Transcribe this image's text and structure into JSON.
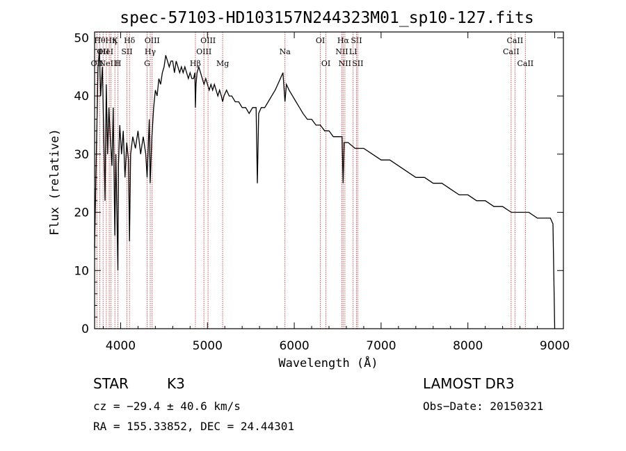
{
  "chart_data": {
    "type": "line",
    "title": "spec-57103-HD103157N244323M01_sp10-127.fits",
    "xlabel": "Wavelength (Å)",
    "ylabel": "Flux (relative)",
    "xlim": [
      3700,
      9100
    ],
    "ylim": [
      0,
      51
    ],
    "x_ticks": [
      4000,
      5000,
      6000,
      7000,
      8000,
      9000
    ],
    "x_tick_labels": [
      "4000",
      "5000",
      "6000",
      "7000",
      "8000",
      "9000"
    ],
    "y_ticks": [
      0,
      10,
      20,
      30,
      40,
      50
    ],
    "y_tick_labels": [
      "0",
      "10",
      "20",
      "30",
      "40",
      "50"
    ],
    "series": [
      {
        "name": "",
        "color": "#000000",
        "points": [
          [
            3700,
            14
          ],
          [
            3720,
            30
          ],
          [
            3740,
            45
          ],
          [
            3755,
            48
          ],
          [
            3770,
            40
          ],
          [
            3790,
            45
          ],
          [
            3810,
            30
          ],
          [
            3820,
            22
          ],
          [
            3835,
            42
          ],
          [
            3850,
            30
          ],
          [
            3865,
            38
          ],
          [
            3880,
            33
          ],
          [
            3900,
            28
          ],
          [
            3915,
            38
          ],
          [
            3933,
            16
          ],
          [
            3945,
            30
          ],
          [
            3968,
            10
          ],
          [
            3975,
            28
          ],
          [
            3990,
            35
          ],
          [
            4010,
            30
          ],
          [
            4030,
            34
          ],
          [
            4050,
            26
          ],
          [
            4070,
            32
          ],
          [
            4090,
            29
          ],
          [
            4102,
            15
          ],
          [
            4115,
            30
          ],
          [
            4140,
            33
          ],
          [
            4170,
            31
          ],
          [
            4200,
            34
          ],
          [
            4230,
            30
          ],
          [
            4260,
            33
          ],
          [
            4290,
            30
          ],
          [
            4305,
            26
          ],
          [
            4330,
            36
          ],
          [
            4340,
            25
          ],
          [
            4360,
            33
          ],
          [
            4380,
            38
          ],
          [
            4400,
            41
          ],
          [
            4420,
            40
          ],
          [
            4440,
            43
          ],
          [
            4460,
            42
          ],
          [
            4480,
            44
          ],
          [
            4500,
            45
          ],
          [
            4520,
            47
          ],
          [
            4540,
            46
          ],
          [
            4560,
            45
          ],
          [
            4580,
            46
          ],
          [
            4600,
            46
          ],
          [
            4620,
            44
          ],
          [
            4640,
            46
          ],
          [
            4660,
            45
          ],
          [
            4680,
            44
          ],
          [
            4700,
            45
          ],
          [
            4720,
            44
          ],
          [
            4740,
            45
          ],
          [
            4760,
            44
          ],
          [
            4780,
            43
          ],
          [
            4800,
            44
          ],
          [
            4820,
            43
          ],
          [
            4840,
            43
          ],
          [
            4855,
            44
          ],
          [
            4861,
            38
          ],
          [
            4868,
            42
          ],
          [
            4880,
            44
          ],
          [
            4900,
            45
          ],
          [
            4920,
            44
          ],
          [
            4940,
            43
          ],
          [
            4960,
            42
          ],
          [
            4980,
            43
          ],
          [
            5000,
            42
          ],
          [
            5020,
            41
          ],
          [
            5040,
            42
          ],
          [
            5060,
            41
          ],
          [
            5080,
            42
          ],
          [
            5100,
            41
          ],
          [
            5120,
            40
          ],
          [
            5140,
            41
          ],
          [
            5160,
            40
          ],
          [
            5175,
            39
          ],
          [
            5190,
            40
          ],
          [
            5220,
            41
          ],
          [
            5250,
            40
          ],
          [
            5280,
            40
          ],
          [
            5320,
            39
          ],
          [
            5360,
            39
          ],
          [
            5400,
            38
          ],
          [
            5440,
            38
          ],
          [
            5480,
            37
          ],
          [
            5520,
            38
          ],
          [
            5560,
            38
          ],
          [
            5575,
            25
          ],
          [
            5590,
            37
          ],
          [
            5620,
            38
          ],
          [
            5660,
            38
          ],
          [
            5700,
            39
          ],
          [
            5740,
            40
          ],
          [
            5780,
            41
          ],
          [
            5810,
            42
          ],
          [
            5840,
            43
          ],
          [
            5870,
            44
          ],
          [
            5893,
            39
          ],
          [
            5910,
            42
          ],
          [
            5940,
            41
          ],
          [
            5980,
            40
          ],
          [
            6020,
            39
          ],
          [
            6060,
            38
          ],
          [
            6100,
            37
          ],
          [
            6150,
            36
          ],
          [
            6200,
            36
          ],
          [
            6250,
            35
          ],
          [
            6300,
            35
          ],
          [
            6350,
            34
          ],
          [
            6400,
            34
          ],
          [
            6450,
            33
          ],
          [
            6500,
            33
          ],
          [
            6550,
            33
          ],
          [
            6563,
            25
          ],
          [
            6575,
            32
          ],
          [
            6620,
            32
          ],
          [
            6700,
            31
          ],
          [
            6800,
            31
          ],
          [
            6900,
            30
          ],
          [
            7000,
            29
          ],
          [
            7100,
            29
          ],
          [
            7200,
            28
          ],
          [
            7300,
            27
          ],
          [
            7400,
            26
          ],
          [
            7500,
            26
          ],
          [
            7600,
            25
          ],
          [
            7700,
            25
          ],
          [
            7800,
            24
          ],
          [
            7900,
            23
          ],
          [
            8000,
            23
          ],
          [
            8100,
            22
          ],
          [
            8200,
            22
          ],
          [
            8300,
            21
          ],
          [
            8400,
            21
          ],
          [
            8500,
            20
          ],
          [
            8600,
            20
          ],
          [
            8700,
            20
          ],
          [
            8800,
            19
          ],
          [
            8900,
            19
          ],
          [
            8950,
            19
          ],
          [
            8980,
            18
          ],
          [
            9000,
            0
          ]
        ]
      }
    ],
    "line_markers": [
      {
        "x": 3727,
        "labels": [
          "OII"
        ],
        "row": 3
      },
      {
        "x": 3760,
        "labels": [
          "Hθ"
        ],
        "row": 1
      },
      {
        "x": 3798,
        "labels": [
          "OII"
        ],
        "row": 2
      },
      {
        "x": 3835,
        "labels": [
          "HeI"
        ],
        "row": 2
      },
      {
        "x": 3869,
        "labels": [
          "NeIII"
        ],
        "row": 3
      },
      {
        "x": 3889,
        "labels": [
          "Hη"
        ],
        "row": 1
      },
      {
        "x": 3934,
        "labels": [
          "K"
        ],
        "row": 1
      },
      {
        "x": 3969,
        "labels": [
          "H"
        ],
        "row": 3
      },
      {
        "x": 4072,
        "labels": [
          "SII"
        ],
        "row": 2
      },
      {
        "x": 4102,
        "labels": [
          "Hδ"
        ],
        "row": 1
      },
      {
        "x": 4305,
        "labels": [
          "G"
        ],
        "row": 3
      },
      {
        "x": 4341,
        "labels": [
          "Hγ"
        ],
        "row": 2
      },
      {
        "x": 4363,
        "labels": [
          "OIII"
        ],
        "row": 1
      },
      {
        "x": 4861,
        "labels": [
          "Hβ"
        ],
        "row": 3
      },
      {
        "x": 4959,
        "labels": [
          "OIII"
        ],
        "row": 2
      },
      {
        "x": 5007,
        "labels": [
          "OIII"
        ],
        "row": 1
      },
      {
        "x": 5175,
        "labels": [
          "Mg"
        ],
        "row": 3
      },
      {
        "x": 5893,
        "labels": [
          "Na"
        ],
        "row": 2
      },
      {
        "x": 6300,
        "labels": [
          "OI"
        ],
        "row": 1
      },
      {
        "x": 6364,
        "labels": [
          "OI"
        ],
        "row": 3
      },
      {
        "x": 6548,
        "labels": [
          "NII"
        ],
        "row": 2
      },
      {
        "x": 6563,
        "labels": [
          "Hα"
        ],
        "row": 1
      },
      {
        "x": 6583,
        "labels": [
          "NII"
        ],
        "row": 3
      },
      {
        "x": 6678,
        "labels": [
          "LI"
        ],
        "row": 2
      },
      {
        "x": 6716,
        "labels": [
          "SII"
        ],
        "row": 1
      },
      {
        "x": 6731,
        "labels": [
          "SII"
        ],
        "row": 3
      },
      {
        "x": 8498,
        "labels": [
          "CaII"
        ],
        "row": 2
      },
      {
        "x": 8542,
        "labels": [
          "CaII"
        ],
        "row": 1
      },
      {
        "x": 8662,
        "labels": [
          "CaII"
        ],
        "row": 3
      }
    ],
    "marker_color": "#d05050",
    "grid": false
  },
  "info": {
    "class_label": "STAR",
    "subclass": "K3",
    "survey": "LAMOST DR3",
    "redshift": "cz = −29.4 ± 40.6 km/s",
    "obs_date": "Obs−Date: 20150321",
    "coords": "RA = 155.33852, DEC =  24.44301"
  }
}
